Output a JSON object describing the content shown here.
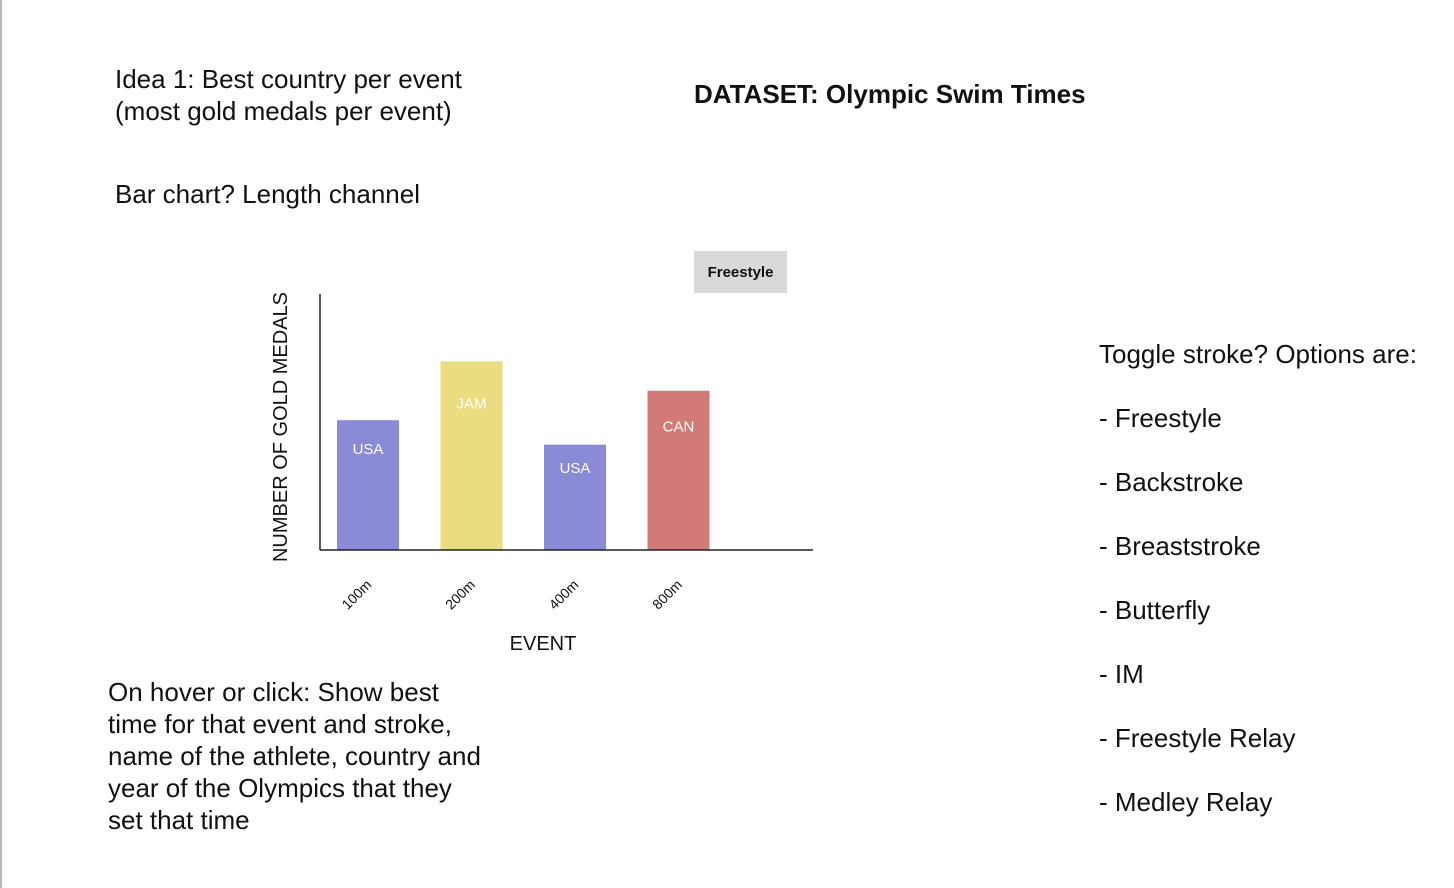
{
  "notes": {
    "idea": "Idea 1: Best country per event\n(most gold medals per event)",
    "chart_type": "Bar chart? Length channel",
    "hover": "On hover or click: Show best time for that event and stroke, name of the athlete, country and year of the Olympics that they set that time"
  },
  "dataset_title": "DATASET: Olympic Swim Times",
  "stroke_toggle": {
    "label": "Freestyle"
  },
  "toggle_note": {
    "heading": "Toggle stroke? Options are:",
    "options": [
      "- Freestyle",
      "- Backstroke",
      "- Breaststroke",
      "- Butterfly",
      "- IM",
      "- Freestyle Relay",
      "- Medley Relay"
    ]
  },
  "chart_data": {
    "type": "bar",
    "categories": [
      "100m",
      "200m",
      "400m",
      "800m"
    ],
    "values": [
      5.3,
      7.7,
      4.3,
      6.5
    ],
    "bar_labels": [
      "USA",
      "JAM",
      "USA",
      "CAN"
    ],
    "colors": [
      "#8a8ad6",
      "#e8dd7f",
      "#8a8ad6",
      "#d27a78"
    ],
    "xlabel": "EVENT",
    "ylabel": "NUMBER OF GOLD MEDALS",
    "ylim": [
      0,
      10
    ],
    "grid": false,
    "y_ticks_shown": false
  }
}
